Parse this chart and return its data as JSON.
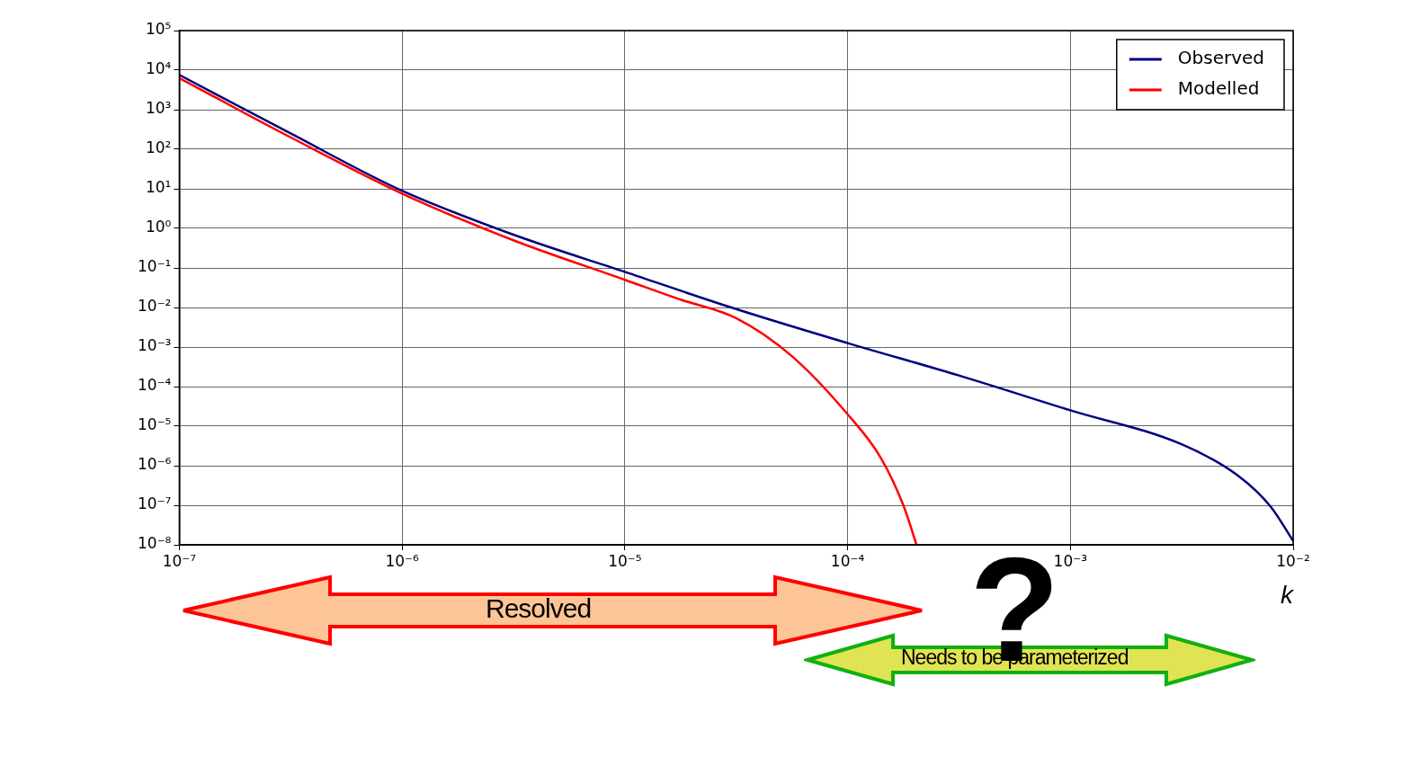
{
  "chart_data": {
    "type": "line",
    "xlabel": "k",
    "log": "xy",
    "grid": true,
    "legend": "top right",
    "marker": "none",
    "line_style": "solid",
    "xlim": [
      1e-07,
      0.01
    ],
    "xticks": [
      {
        "value": 1e-07,
        "label": "10⁻⁷"
      },
      {
        "value": 1e-06,
        "label": "10⁻⁶"
      },
      {
        "value": 1e-05,
        "label": "10⁻⁵"
      },
      {
        "value": 0.0001,
        "label": "10⁻⁴"
      },
      {
        "value": 0.001,
        "label": "10⁻³"
      },
      {
        "value": 0.01,
        "label": "10⁻²"
      }
    ],
    "ylim": [
      1e-08,
      100000.0
    ],
    "yticks": [
      {
        "value": 1e-08,
        "label": "10⁻⁸"
      },
      {
        "value": 1e-07,
        "label": "10⁻⁷"
      },
      {
        "value": 1e-06,
        "label": "10⁻⁶"
      },
      {
        "value": 1e-05,
        "label": "10⁻⁵"
      },
      {
        "value": 0.0001,
        "label": "10⁻⁴"
      },
      {
        "value": 0.001,
        "label": "10⁻³"
      },
      {
        "value": 0.01,
        "label": "10⁻²"
      },
      {
        "value": 0.1,
        "label": "10⁻¹"
      },
      {
        "value": 1,
        "label": "10⁰"
      },
      {
        "value": 10,
        "label": "10¹"
      },
      {
        "value": 100,
        "label": "10²"
      },
      {
        "value": 1000,
        "label": "10³"
      },
      {
        "value": 10000,
        "label": "10⁴"
      },
      {
        "value": 100000,
        "label": "10⁵"
      }
    ],
    "series": [
      {
        "name": "Observed",
        "color": "#000080",
        "x": [
          1e-07,
          3.16e-07,
          1e-06,
          3.16e-06,
          1e-05,
          3.16e-05,
          0.0001,
          0.000316,
          0.001,
          0.00316,
          0.00562,
          0.00794,
          0.01
        ],
        "values": [
          7590,
          251,
          8.91,
          0.692,
          0.0794,
          0.00912,
          0.00126,
          0.000191,
          2.51e-05,
          3.47e-06,
          5.75e-07,
          9.12e-08,
          1.26e-08
        ]
      },
      {
        "name": "Modelled",
        "color": "#ff0000",
        "x": [
          1e-07,
          3.16e-07,
          1e-06,
          3.16e-06,
          1e-05,
          1.78e-05,
          3.16e-05,
          5.62e-05,
          0.0001,
          0.000141,
          0.000178,
          0.000204
        ],
        "values": [
          6310,
          200,
          7.59,
          0.5,
          0.0501,
          0.0158,
          0.00537,
          0.000589,
          2e-05,
          1.58e-06,
          1e-07,
          1e-08
        ]
      }
    ],
    "annotations": [
      "Resolved",
      "Needs to be parameterized",
      "?"
    ]
  }
}
